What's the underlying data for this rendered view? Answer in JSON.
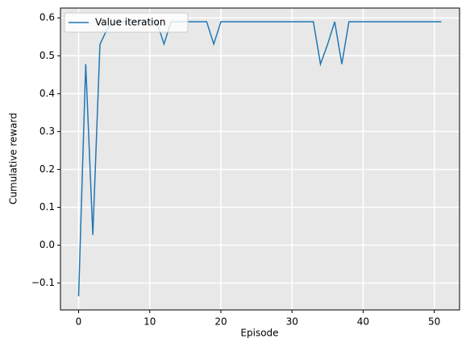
{
  "chart_data": {
    "type": "line",
    "xlabel": "Episode",
    "ylabel": "Cumulative reward",
    "x": [
      0,
      1,
      2,
      3,
      4,
      5,
      6,
      7,
      8,
      9,
      10,
      11,
      12,
      13,
      14,
      15,
      16,
      17,
      18,
      19,
      20,
      21,
      22,
      23,
      24,
      25,
      26,
      27,
      28,
      29,
      30,
      31,
      32,
      33,
      34,
      35,
      36,
      37,
      38,
      39,
      40,
      41,
      42,
      43,
      44,
      45,
      46,
      47,
      48,
      49,
      50,
      51
    ],
    "series": [
      {
        "name": "Value iteration",
        "color": "#1f77b4",
        "values": [
          -0.135,
          0.478,
          0.027,
          0.53,
          0.57,
          0.59,
          0.59,
          0.59,
          0.59,
          0.59,
          0.59,
          0.59,
          0.531,
          0.59,
          0.59,
          0.59,
          0.59,
          0.59,
          0.59,
          0.531,
          0.59,
          0.59,
          0.59,
          0.59,
          0.59,
          0.59,
          0.59,
          0.59,
          0.59,
          0.59,
          0.59,
          0.59,
          0.59,
          0.59,
          0.478,
          0.53,
          0.59,
          0.478,
          0.59,
          0.59,
          0.59,
          0.59,
          0.59,
          0.59,
          0.59,
          0.59,
          0.59,
          0.59,
          0.59,
          0.59,
          0.59,
          0.59
        ]
      }
    ],
    "xlim": [
      -2.55,
      53.55
    ],
    "xticks": [
      0,
      10,
      20,
      30,
      40,
      50
    ],
    "ylim": [
      -0.171,
      0.626
    ],
    "yticks": [
      {
        "value": -0.1,
        "label": "−0.1"
      },
      {
        "value": 0,
        "label": "0.0"
      },
      0.1,
      0.2,
      0.3,
      0.4,
      0.5,
      0.6
    ],
    "grid": true,
    "legend": "upper left"
  }
}
